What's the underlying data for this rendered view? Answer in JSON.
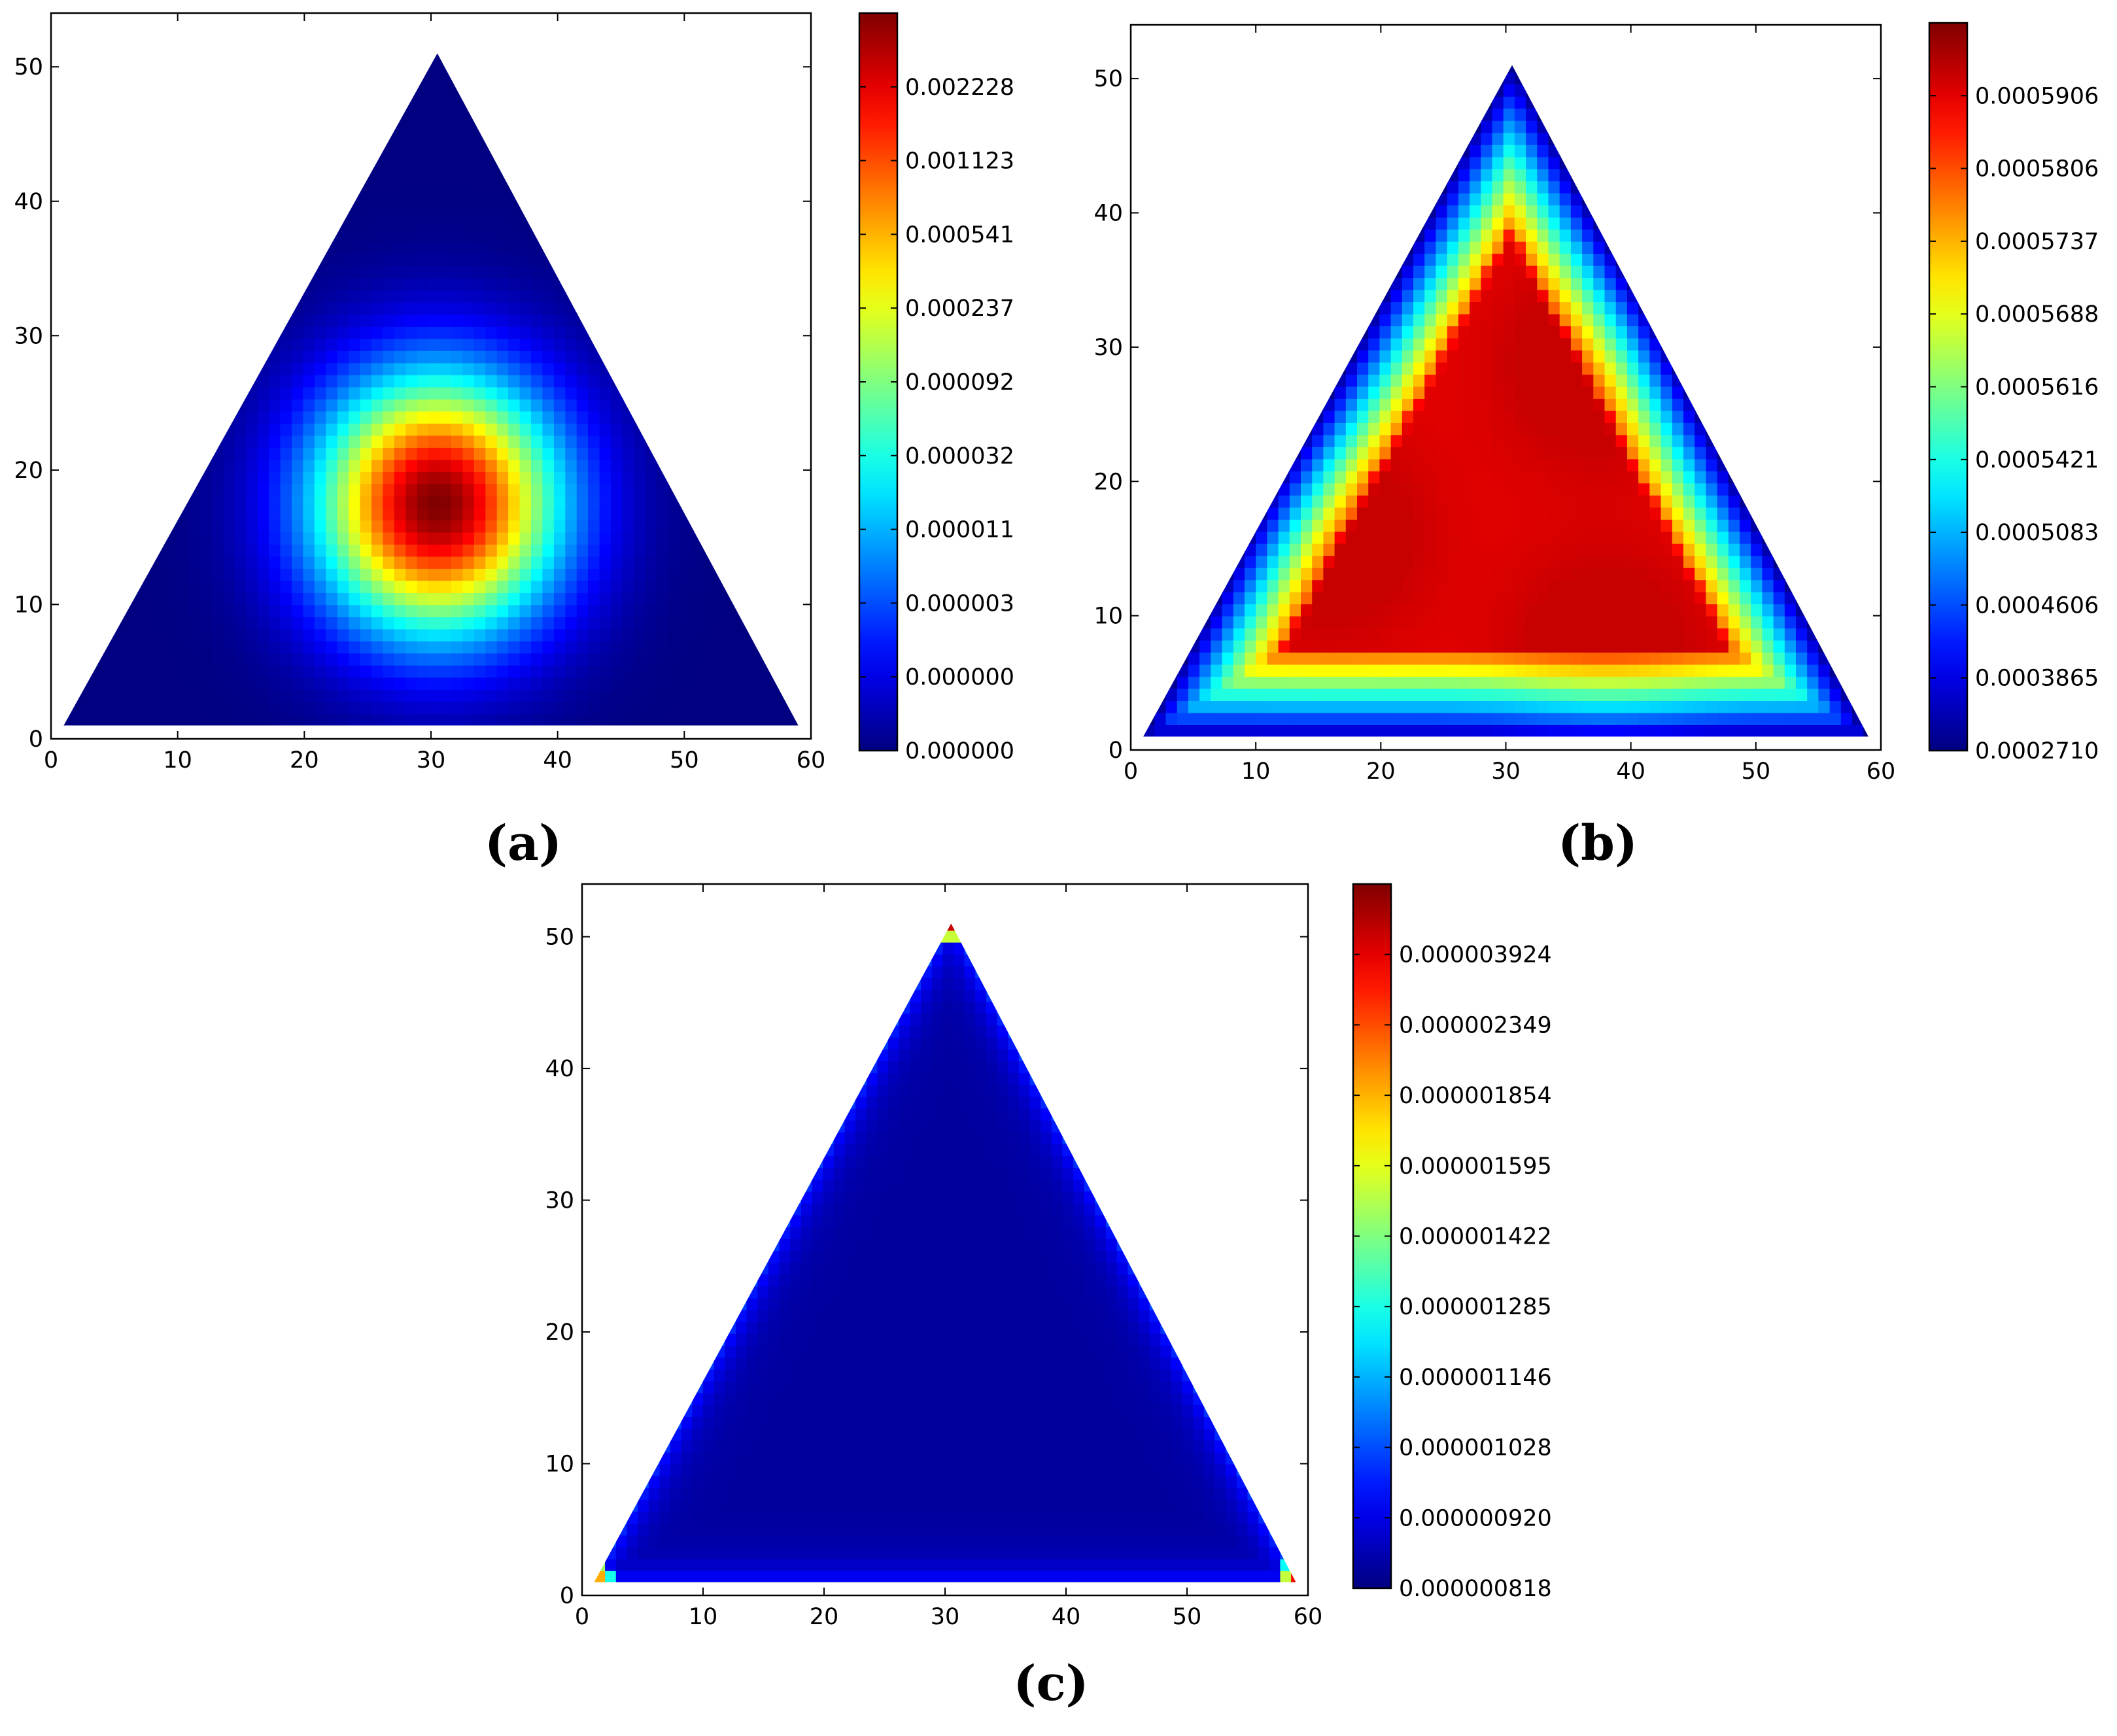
{
  "chart_data": [
    {
      "panel": "(a)",
      "type": "heatmap",
      "shape": "triangle",
      "triangle_vertices": [
        [
          1,
          1
        ],
        [
          59,
          1
        ],
        [
          30.5,
          51
        ]
      ],
      "field": "peak",
      "field_center": [
        30.5,
        17.5
      ],
      "xlim": [
        0,
        60
      ],
      "ylim": [
        0,
        54
      ],
      "xticks": [
        0,
        10,
        20,
        30,
        40,
        50,
        60
      ],
      "yticks": [
        0,
        10,
        20,
        30,
        40,
        50
      ],
      "colorbar": {
        "colormap": "jet",
        "tick_labels": [
          "0.002228",
          "0.001123",
          "0.000541",
          "0.000237",
          "0.000092",
          "0.000032",
          "0.000011",
          "0.000003",
          "0.000000",
          "0.000000"
        ]
      }
    },
    {
      "panel": "(b)",
      "type": "heatmap",
      "shape": "triangle",
      "triangle_vertices": [
        [
          1,
          1
        ],
        [
          59,
          1
        ],
        [
          30.5,
          51
        ]
      ],
      "field": "edges",
      "xlim": [
        0,
        60
      ],
      "ylim": [
        0,
        54
      ],
      "xticks": [
        0,
        10,
        20,
        30,
        40,
        50,
        60
      ],
      "yticks": [
        0,
        10,
        20,
        30,
        40,
        50
      ],
      "colorbar": {
        "colormap": "jet",
        "tick_labels": [
          "0.0005906",
          "0.0005806",
          "0.0005737",
          "0.0005688",
          "0.0005616",
          "0.0005421",
          "0.0005083",
          "0.0004606",
          "0.0003865",
          "0.0002710"
        ]
      }
    },
    {
      "panel": "(c)",
      "type": "heatmap",
      "shape": "triangle",
      "triangle_vertices": [
        [
          1,
          1
        ],
        [
          59,
          1
        ],
        [
          30.5,
          51
        ]
      ],
      "field": "corners",
      "xlim": [
        0,
        60
      ],
      "ylim": [
        0,
        54
      ],
      "xticks": [
        0,
        10,
        20,
        30,
        40,
        50,
        60
      ],
      "yticks": [
        0,
        10,
        20,
        30,
        40,
        50
      ],
      "colorbar": {
        "colormap": "jet",
        "tick_labels": [
          "0.000003924",
          "0.000002349",
          "0.000001854",
          "0.000001595",
          "0.000001422",
          "0.000001285",
          "0.000001146",
          "0.000001028",
          "0.000000920",
          "0.000000818"
        ]
      }
    }
  ]
}
